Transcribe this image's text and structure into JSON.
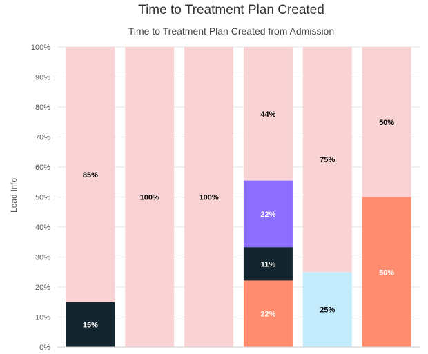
{
  "chart_data": {
    "type": "bar",
    "stacked": true,
    "normalized": true,
    "title": "Time to Treatment Plan Created",
    "subtitle": "Time to Treatment Plan Created from Admission",
    "xlabel": "",
    "ylabel": "Lead Info",
    "ylim": [
      0,
      100
    ],
    "yticks": [
      "0%",
      "10%",
      "20%",
      "30%",
      "40%",
      "50%",
      "60%",
      "70%",
      "80%",
      "90%",
      "100%"
    ],
    "grid": true,
    "legend": "none",
    "categories": [
      "",
      "",
      "",
      "",
      "",
      ""
    ],
    "bars": [
      {
        "segments": [
          {
            "value": 15,
            "label": "15%",
            "color": "#13262f",
            "text_color": "#ffffff"
          },
          {
            "value": 85,
            "label": "85%",
            "color": "#f9d3d3",
            "text_color": "#000000"
          }
        ]
      },
      {
        "segments": [
          {
            "value": 100,
            "label": "100%",
            "color": "#f9d3d3",
            "text_color": "#000000"
          }
        ]
      },
      {
        "segments": [
          {
            "value": 100,
            "label": "100%",
            "color": "#f9d3d3",
            "text_color": "#000000"
          }
        ]
      },
      {
        "segments": [
          {
            "value": 22.2,
            "label": "22%",
            "color": "#ff8c6e",
            "text_color": "#ffffff"
          },
          {
            "value": 11.1,
            "label": "11%",
            "color": "#13262f",
            "text_color": "#ffffff"
          },
          {
            "value": 22.2,
            "label": "22%",
            "color": "#8b6dff",
            "text_color": "#ffffff"
          },
          {
            "value": 44.5,
            "label": "44%",
            "color": "#f9d3d3",
            "text_color": "#000000"
          }
        ]
      },
      {
        "segments": [
          {
            "value": 25,
            "label": "25%",
            "color": "#c3ebfc",
            "text_color": "#000000"
          },
          {
            "value": 75,
            "label": "75%",
            "color": "#f9d3d3",
            "text_color": "#000000"
          }
        ]
      },
      {
        "segments": [
          {
            "value": 50,
            "label": "50%",
            "color": "#ff8c6e",
            "text_color": "#ffffff"
          },
          {
            "value": 50,
            "label": "50%",
            "color": "#f9d3d3",
            "text_color": "#000000"
          }
        ]
      }
    ]
  }
}
